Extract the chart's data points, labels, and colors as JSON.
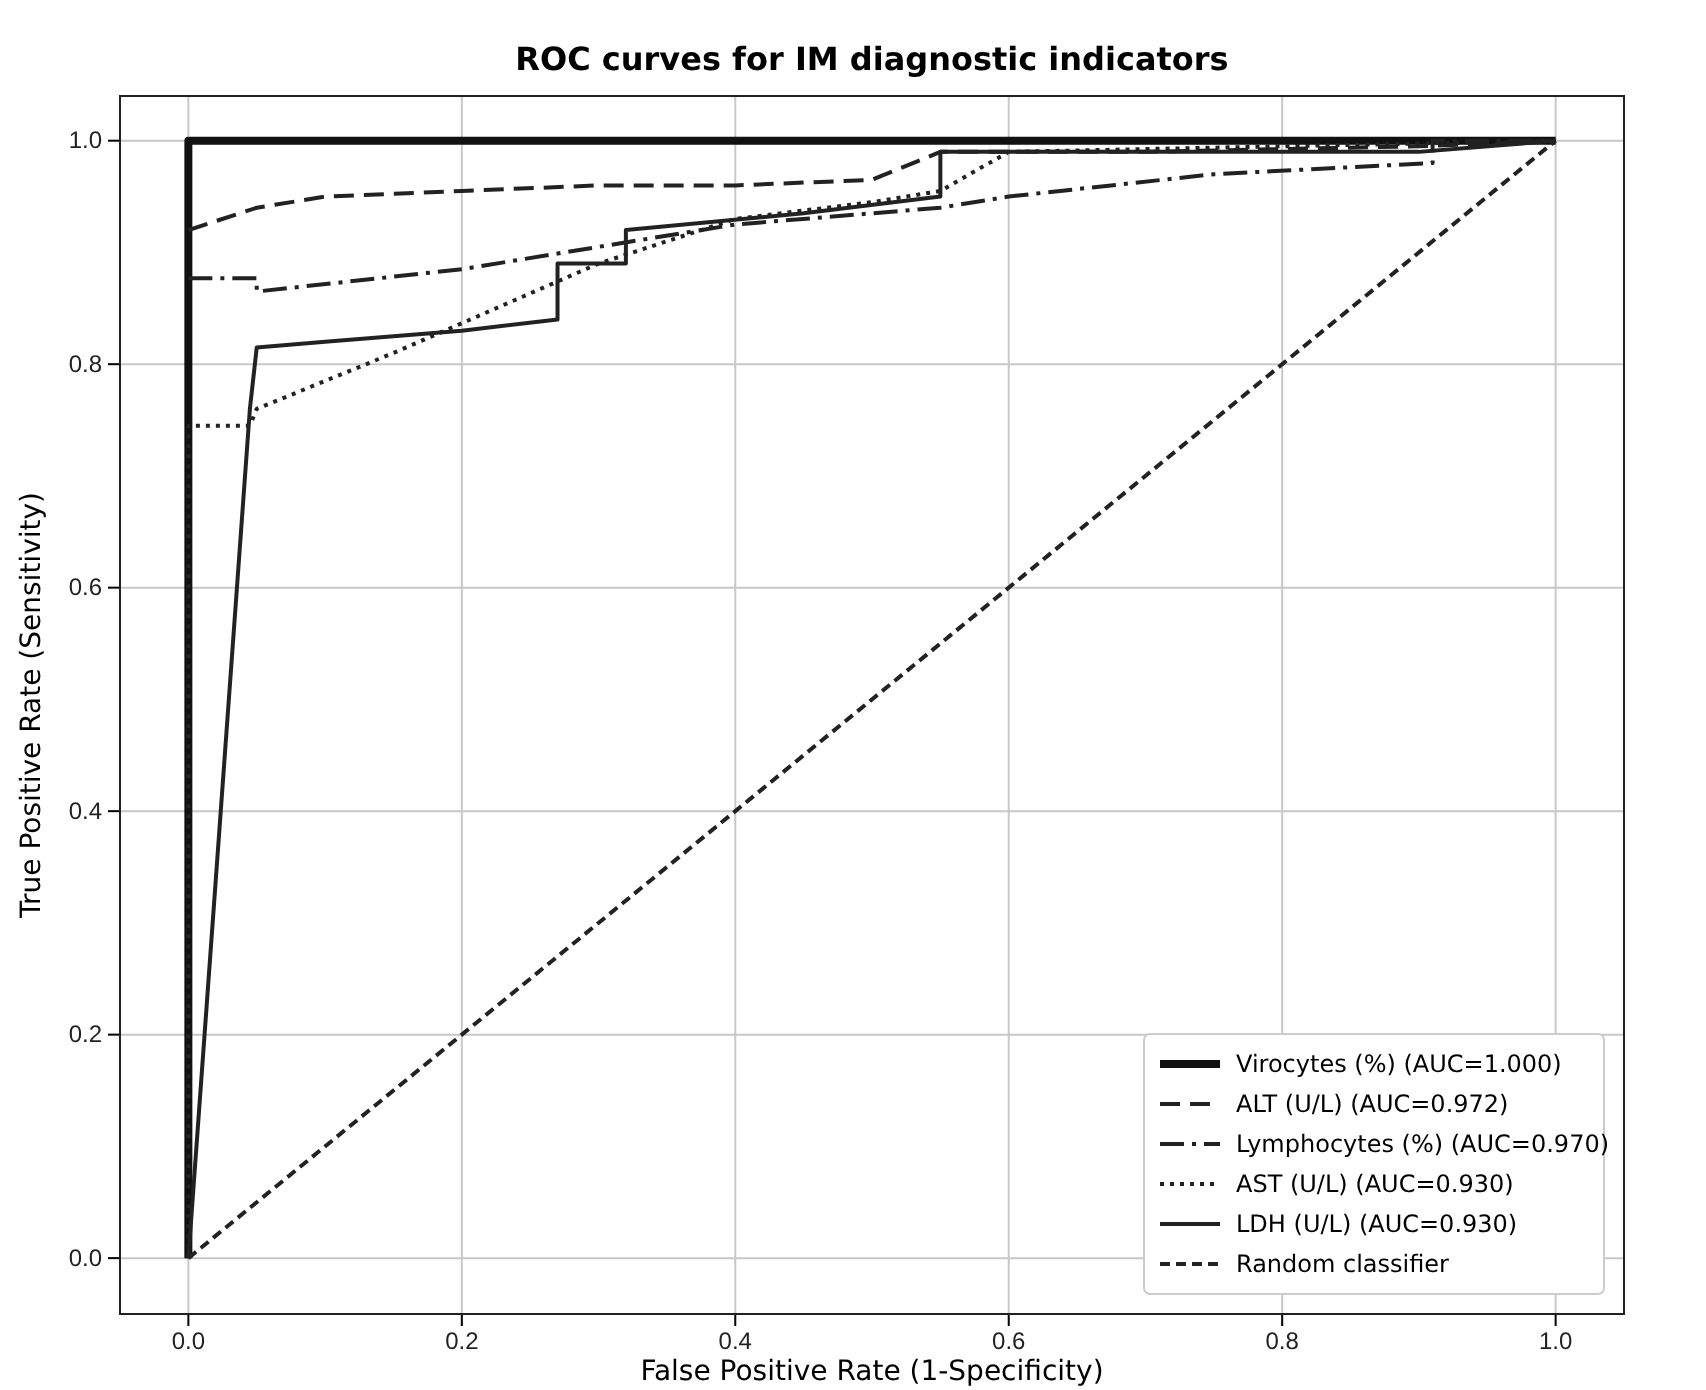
{
  "chart_data": {
    "type": "line",
    "title": "ROC curves for IM diagnostic indicators",
    "xlabel": "False Positive Rate (1-Specificity)",
    "ylabel": "True Positive Rate (Sensitivity)",
    "xlim": [
      -0.05,
      1.05
    ],
    "ylim": [
      -0.05,
      1.04
    ],
    "xticks": [
      {
        "value": 0,
        "label": "0.0"
      },
      {
        "value": 0.2,
        "label": "0.2"
      },
      {
        "value": 0.4,
        "label": "0.4"
      },
      {
        "value": 0.6,
        "label": "0.6"
      },
      {
        "value": 0.8,
        "label": "0.8"
      },
      {
        "value": 1,
        "label": "1.0"
      }
    ],
    "yticks": [
      {
        "value": 0,
        "label": "0.0"
      },
      {
        "value": 0.2,
        "label": "0.2"
      },
      {
        "value": 0.4,
        "label": "0.4"
      },
      {
        "value": 0.6,
        "label": "0.6"
      },
      {
        "value": 0.8,
        "label": "0.8"
      },
      {
        "value": 1,
        "label": "1.0"
      }
    ],
    "grid": true,
    "legend": "bottom right",
    "series": [
      {
        "name": "Virocytes (%) (AUC=1.000)",
        "color": "#111111",
        "line_style": "solid",
        "x": [
          0,
          0,
          1
        ],
        "values": [
          0,
          1,
          1
        ]
      },
      {
        "name": "ALT (U/L) (AUC=0.972)",
        "color": "#222222",
        "line_style": "dashed",
        "x": [
          0,
          0.05,
          0.1,
          0.2,
          0.3,
          0.4,
          0.5,
          0.55,
          0.7,
          0.9,
          1
        ],
        "values": [
          0.92,
          0.94,
          0.95,
          0.955,
          0.96,
          0.96,
          0.965,
          0.99,
          0.99,
          0.995,
          1
        ]
      },
      {
        "name": "Lymphocytes (%) (AUC=0.970)",
        "color": "#222222",
        "line_style": "dashdot",
        "x": [
          0,
          0.05,
          0.05,
          0.2,
          0.3,
          0.4,
          0.5,
          0.55,
          0.6,
          0.75,
          0.91,
          0.91,
          1
        ],
        "values": [
          0.877,
          0.877,
          0.865,
          0.885,
          0.905,
          0.925,
          0.935,
          0.94,
          0.95,
          0.97,
          0.98,
          1,
          1
        ]
      },
      {
        "name": "AST (U/L) (AUC=0.930)",
        "color": "#222222",
        "line_style": "dotted",
        "x": [
          0,
          0,
          0.045,
          0.05,
          0.15,
          0.3,
          0.4,
          0.5,
          0.55,
          0.6,
          1
        ],
        "values": [
          0,
          0.745,
          0.745,
          0.76,
          0.81,
          0.89,
          0.93,
          0.945,
          0.955,
          0.99,
          1
        ]
      },
      {
        "name": "LDH (U/L) (AUC=0.930)",
        "color": "#222222",
        "line_style": "solid",
        "x": [
          0,
          0.045,
          0.05,
          0.1,
          0.2,
          0.27,
          0.27,
          0.32,
          0.32,
          0.45,
          0.55,
          0.55,
          0.9,
          1
        ],
        "values": [
          0,
          0.76,
          0.815,
          0.82,
          0.83,
          0.84,
          0.89,
          0.89,
          0.92,
          0.935,
          0.95,
          0.99,
          0.99,
          1
        ]
      },
      {
        "name": "Random classifier",
        "color": "#222222",
        "line_style": "shortdash",
        "x": [
          0,
          1
        ],
        "values": [
          0,
          1
        ]
      }
    ]
  }
}
